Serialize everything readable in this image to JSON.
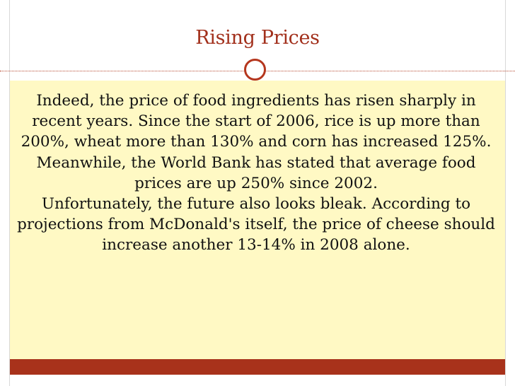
{
  "slide": {
    "title": "Rising Prices",
    "paragraphs": [
      "Indeed, the price of food ingredients has risen sharply in recent years. Since the start of 2006, rice is up more than 200%, wheat more than 130% and corn has increased 125%. Meanwhile, the World Bank has stated that average food prices are up 250% since 2002.",
      "Unfortunately, the future also looks bleak. According to projections from McDonald's itself, the price of cheese should increase another 13-14% in 2008 alone."
    ]
  },
  "colors": {
    "accent": "#a8321b",
    "content_background": "#fff9c4",
    "text": "#111111"
  }
}
